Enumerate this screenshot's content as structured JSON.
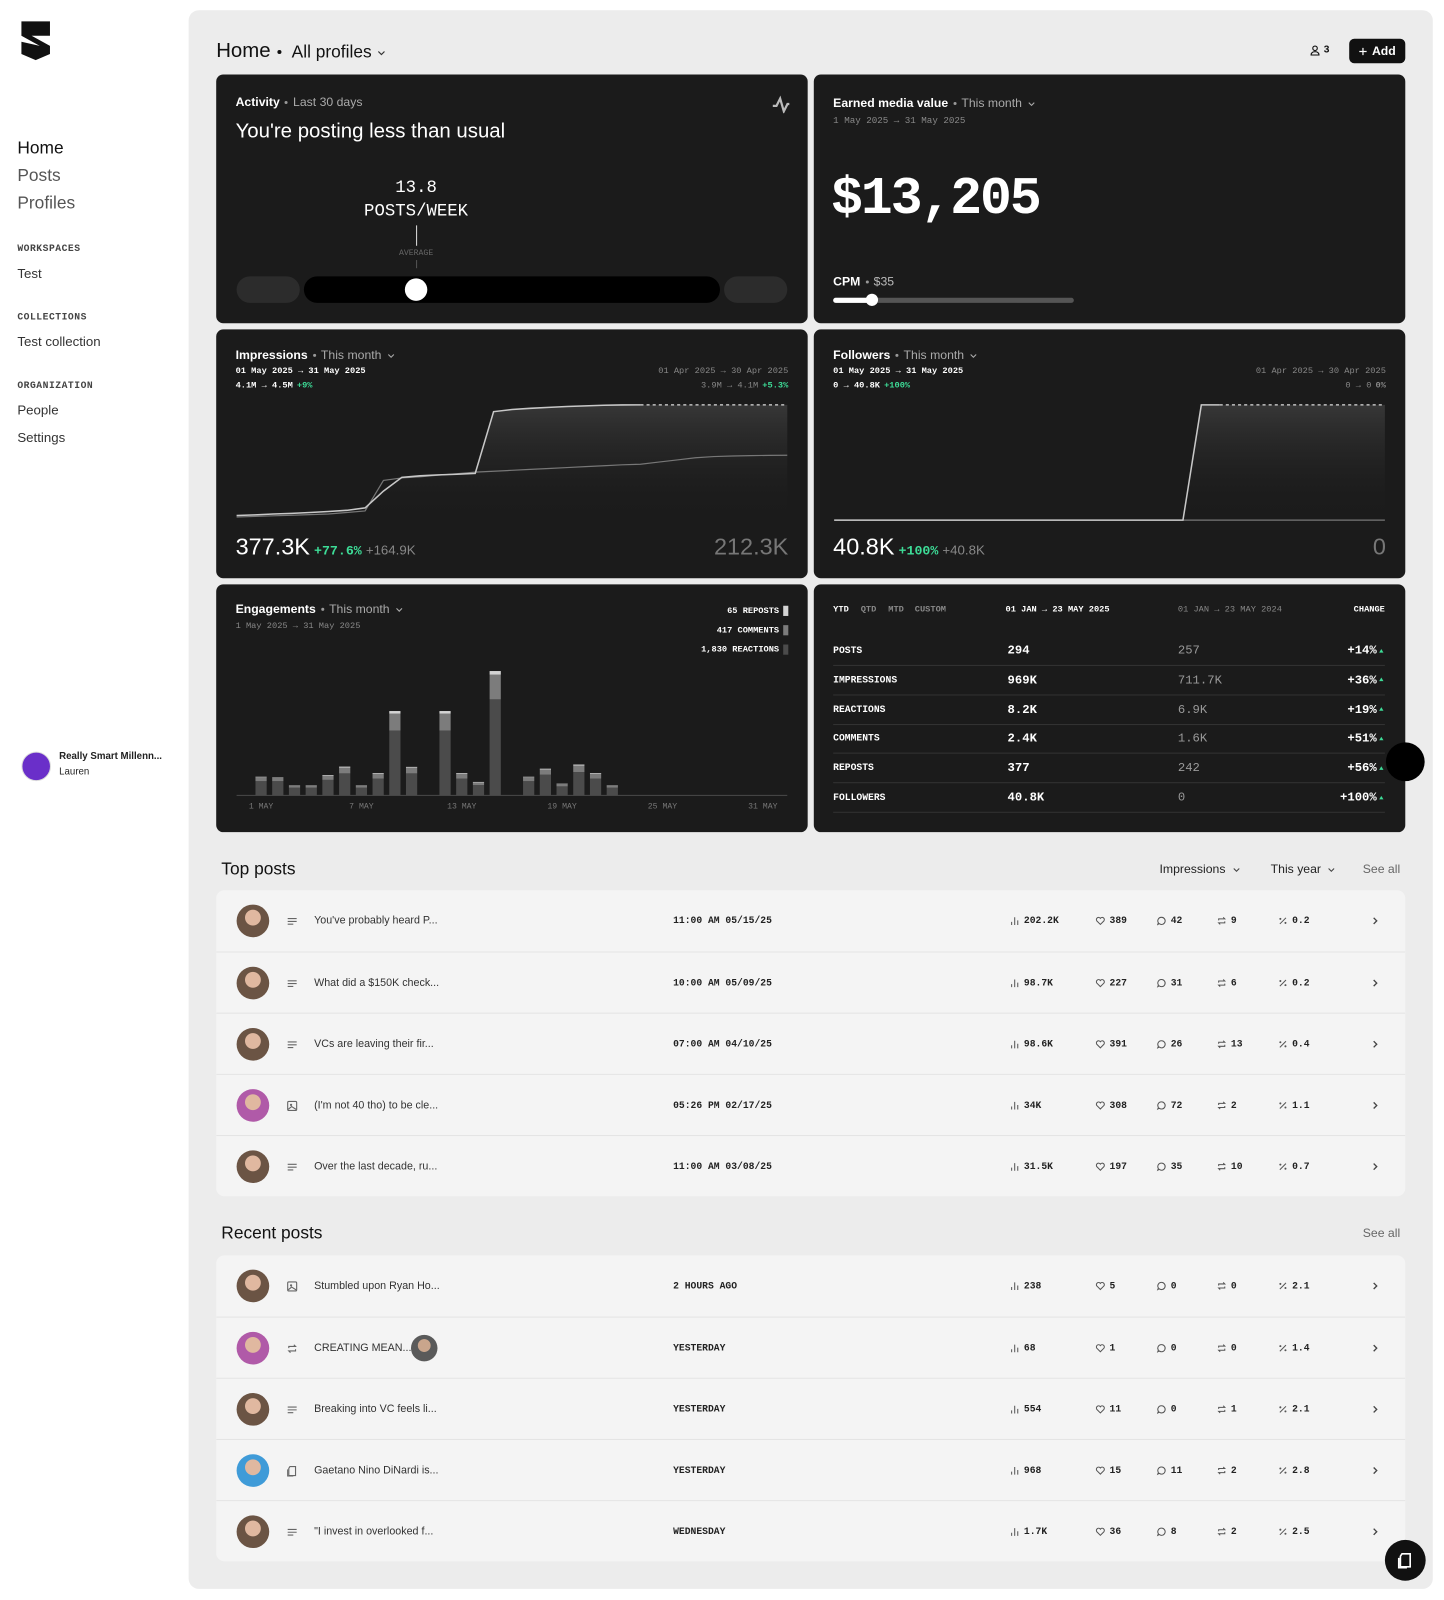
{
  "sidebar": {
    "nav": [
      "Home",
      "Posts",
      "Profiles"
    ],
    "sections": [
      {
        "title": "WORKSPACES",
        "items": [
          "Test"
        ]
      },
      {
        "title": "COLLECTIONS",
        "items": [
          "Test collection"
        ]
      },
      {
        "title": "ORGANIZATION",
        "items": [
          "People",
          "Settings"
        ]
      }
    ],
    "account": {
      "org": "Really Smart Millenn...",
      "user": "Lauren"
    }
  },
  "header": {
    "title": "Home",
    "filter": "All profiles",
    "members": "3",
    "add": "Add"
  },
  "activity": {
    "label": "Activity",
    "period": "Last 30 days",
    "headline": "You're posting less than usual",
    "value": "13.8",
    "unit": "POSTS/WEEK",
    "marker": "AVERAGE"
  },
  "emv": {
    "label": "Earned media value",
    "period": "This month",
    "range": "1 May 2025 → 31 May 2025",
    "value": "$13,205",
    "cpm_label": "CPM",
    "cpm": "$35"
  },
  "impressions": {
    "label": "Impressions",
    "period": "This month",
    "range": "01 May 2025 → 31 May 2025",
    "range_values": "4.1M → 4.5M",
    "range_change": "+9%",
    "compare_range": "01 Apr 2025 → 30 Apr 2025",
    "compare_values": "3.9M → 4.1M",
    "compare_change": "+5.3%",
    "total": "377.3K",
    "total_change": "+77.6%",
    "total_delta": "+164.9K",
    "compare_total": "212.3K",
    "chart": {
      "type": "line",
      "current": [
        15,
        17,
        20,
        22,
        25,
        28,
        32,
        40,
        95,
        140,
        145,
        148,
        150,
        153,
        355,
        362,
        366,
        369,
        372,
        374,
        376,
        377,
        377.3
      ],
      "previous": [
        10,
        12,
        14,
        16,
        18,
        20,
        25,
        30,
        130,
        138,
        142,
        147,
        152,
        157,
        160,
        163,
        166,
        169,
        172,
        175,
        178,
        181,
        183,
        190,
        197,
        204,
        208,
        210,
        211,
        212,
        212.3
      ]
    }
  },
  "followers": {
    "label": "Followers",
    "period": "This month",
    "range": "01 May 2025 → 31 May 2025",
    "range_values": "0 → 40.8K",
    "range_change": "+100%",
    "compare_range": "01 Apr 2025 → 30 Apr 2025",
    "compare_values": "0 → 0",
    "compare_change": "0%",
    "total": "40.8K",
    "total_change": "+100%",
    "total_delta": "+40.8K",
    "compare_total": "0",
    "chart": {
      "type": "line",
      "current": [
        0,
        0,
        0,
        0,
        0,
        0,
        0,
        0,
        0,
        0,
        0,
        0,
        0,
        0,
        0,
        0,
        0,
        0,
        0,
        0,
        40.8,
        40.8
      ],
      "previous": [
        0,
        0,
        0,
        0,
        0,
        0,
        0,
        0,
        0,
        0,
        0,
        0,
        0,
        0,
        0,
        0,
        0,
        0,
        0,
        0,
        0,
        0,
        0,
        0,
        0,
        0,
        0,
        0,
        0,
        0,
        0
      ]
    }
  },
  "engagements": {
    "label": "Engagements",
    "period": "This month",
    "range": "1 May 2025 → 31 May 2025",
    "chart": {
      "type": "bar",
      "categories": [
        "1 MAY",
        null,
        null,
        null,
        null,
        null,
        "7 MAY",
        null,
        null,
        null,
        null,
        null,
        "13 MAY",
        null,
        null,
        null,
        null,
        null,
        "19 MAY",
        null,
        null,
        null,
        null,
        null,
        "25 MAY",
        null,
        null,
        null,
        null,
        null,
        "31 MAY"
      ],
      "series": [
        {
          "name": "65 REPOSTS",
          "color": "#d4d4d4",
          "values": [
            2,
            2,
            1,
            1,
            3,
            4,
            1,
            3,
            10,
            3,
            0,
            10,
            3,
            2,
            14,
            0,
            2,
            3,
            1,
            4,
            3,
            1,
            0,
            0,
            0,
            0,
            0,
            0,
            0,
            0,
            0
          ]
        },
        {
          "name": "417 COMMENTS",
          "color": "#7c7c7c",
          "values": [
            15,
            12,
            8,
            8,
            15,
            22,
            8,
            18,
            65,
            22,
            0,
            65,
            18,
            10,
            95,
            0,
            15,
            20,
            10,
            25,
            18,
            8,
            0,
            0,
            0,
            0,
            0,
            0,
            0,
            0,
            0
          ]
        },
        {
          "name": "1,830 REACTIONS",
          "color": "#4b4b4b",
          "values": [
            55,
            55,
            30,
            30,
            60,
            85,
            30,
            65,
            250,
            85,
            0,
            250,
            65,
            40,
            370,
            0,
            55,
            80,
            35,
            90,
            65,
            30,
            0,
            0,
            0,
            0,
            0,
            0,
            0,
            0,
            0
          ]
        }
      ]
    }
  },
  "stats": {
    "tabs": [
      "YTD",
      "QTD",
      "MTD",
      "CUSTOM"
    ],
    "columns": [
      "01 JAN → 23 MAY 2025",
      "01 JAN → 23 MAY 2024",
      "CHANGE"
    ],
    "rows": [
      [
        "POSTS",
        "294",
        "257",
        "+14%"
      ],
      [
        "IMPRESSIONS",
        "969K",
        "711.7K",
        "+36%"
      ],
      [
        "REACTIONS",
        "8.2K",
        "6.9K",
        "+19%"
      ],
      [
        "COMMENTS",
        "2.4K",
        "1.6K",
        "+51%"
      ],
      [
        "REPOSTS",
        "377",
        "242",
        "+56%"
      ],
      [
        "FOLLOWERS",
        "40.8K",
        "0",
        "+100%"
      ]
    ]
  },
  "top_posts": {
    "title": "Top posts",
    "metric": "Impressions",
    "period": "This year",
    "see_all": "See all",
    "rows": [
      {
        "avatar": "#6b5444",
        "icon": "text",
        "text": "You've probably heard P...",
        "time": "11:00 AM 05/15/25",
        "impressions": "202.2K",
        "likes": "389",
        "comments": "42",
        "reposts": "9",
        "rate": "0.2"
      },
      {
        "avatar": "#6b5444",
        "icon": "text",
        "text": "What did a $150K check...",
        "time": "10:00 AM 05/09/25",
        "impressions": "98.7K",
        "likes": "227",
        "comments": "31",
        "reposts": "6",
        "rate": "0.2"
      },
      {
        "avatar": "#6b5444",
        "icon": "text",
        "text": "VCs are leaving their fir...",
        "time": "07:00 AM 04/10/25",
        "impressions": "98.6K",
        "likes": "391",
        "comments": "26",
        "reposts": "13",
        "rate": "0.4"
      },
      {
        "avatar": "#b05aa8",
        "icon": "image",
        "text": "(I'm not 40 tho) to be cle...",
        "time": "05:26 PM 02/17/25",
        "impressions": "34K",
        "likes": "308",
        "comments": "72",
        "reposts": "2",
        "rate": "1.1"
      },
      {
        "avatar": "#6b5444",
        "icon": "text",
        "text": "Over the last decade, ru...",
        "time": "11:00 AM 03/08/25",
        "impressions": "31.5K",
        "likes": "197",
        "comments": "35",
        "reposts": "10",
        "rate": "0.7"
      }
    ]
  },
  "recent_posts": {
    "title": "Recent posts",
    "see_all": "See all",
    "rows": [
      {
        "avatar": "#6b5444",
        "icon": "image",
        "text": "Stumbled upon Ryan Ho...",
        "time": "2 HOURS AGO",
        "impressions": "238",
        "likes": "5",
        "comments": "0",
        "reposts": "0",
        "rate": "2.1"
      },
      {
        "avatar": "#b05aa8",
        "avatar2": "#5a5a5a",
        "icon": "repost",
        "text": "CREATING MEAN...",
        "time": "YESTERDAY",
        "impressions": "68",
        "likes": "1",
        "comments": "0",
        "reposts": "0",
        "rate": "1.4"
      },
      {
        "avatar": "#6b5444",
        "icon": "text",
        "text": "Breaking into VC feels li...",
        "time": "YESTERDAY",
        "impressions": "554",
        "likes": "11",
        "comments": "0",
        "reposts": "1",
        "rate": "2.1"
      },
      {
        "avatar": "#3f9bd8",
        "icon": "doc",
        "text": "Gaetano Nino DiNardi is...",
        "time": "YESTERDAY",
        "impressions": "968",
        "likes": "15",
        "comments": "11",
        "reposts": "2",
        "rate": "2.8"
      },
      {
        "avatar": "#6b5444",
        "icon": "text",
        "text": "\"I invest in overlooked f...",
        "time": "WEDNESDAY",
        "impressions": "1.7K",
        "likes": "36",
        "comments": "8",
        "reposts": "2",
        "rate": "2.5"
      }
    ]
  }
}
